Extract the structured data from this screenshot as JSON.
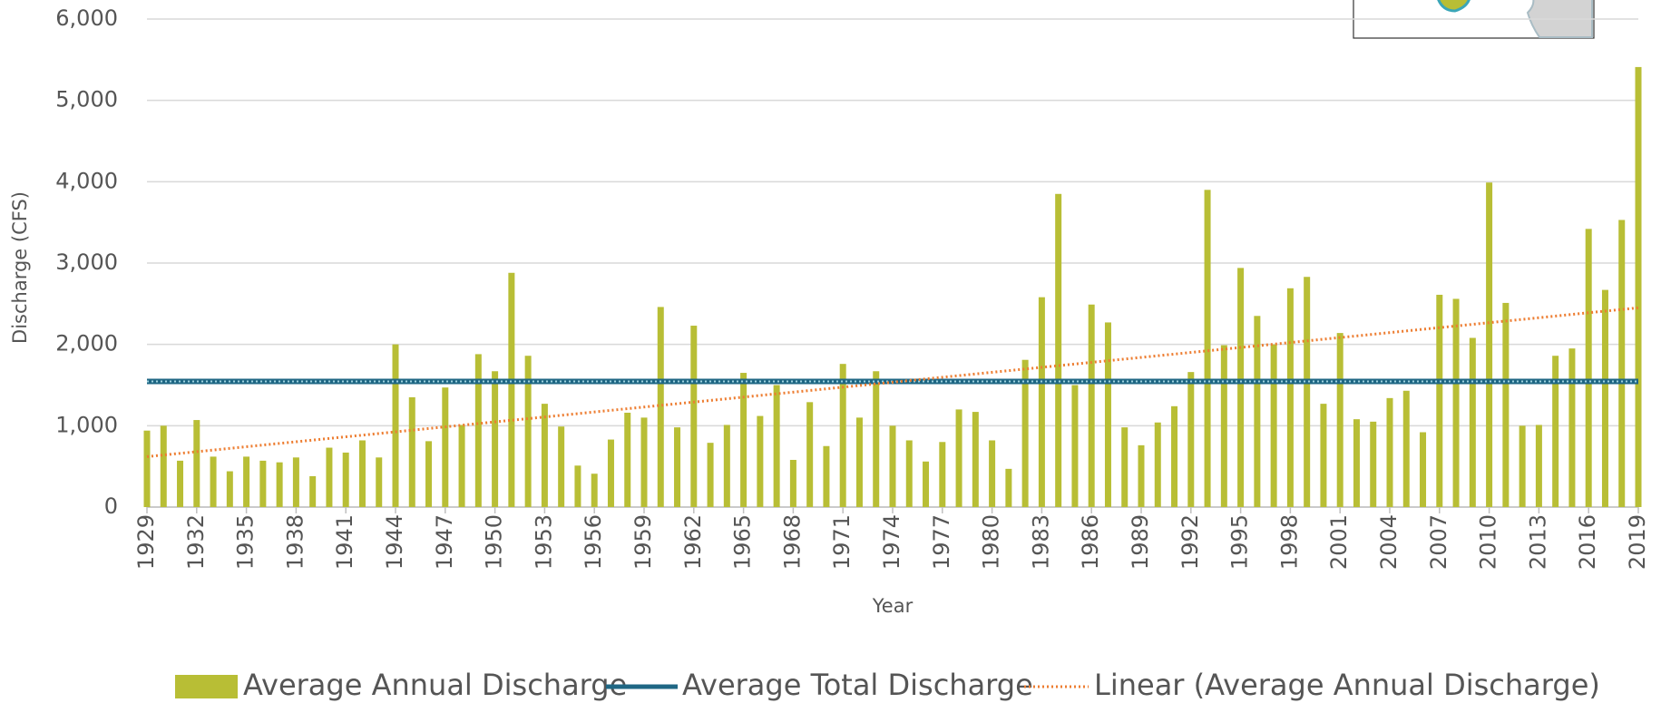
{
  "chart_data": {
    "type": "bar",
    "y_label": "Discharge (CFS)",
    "x_label": "Year",
    "x": [
      1929,
      1930,
      1931,
      1932,
      1933,
      1934,
      1935,
      1936,
      1937,
      1938,
      1939,
      1940,
      1941,
      1942,
      1943,
      1944,
      1945,
      1946,
      1947,
      1948,
      1949,
      1950,
      1951,
      1952,
      1953,
      1954,
      1955,
      1956,
      1957,
      1958,
      1959,
      1960,
      1961,
      1962,
      1963,
      1964,
      1965,
      1966,
      1967,
      1968,
      1969,
      1970,
      1971,
      1972,
      1973,
      1974,
      1975,
      1976,
      1977,
      1978,
      1979,
      1980,
      1981,
      1982,
      1983,
      1984,
      1985,
      1986,
      1987,
      1988,
      1989,
      1990,
      1991,
      1992,
      1993,
      1994,
      1995,
      1996,
      1997,
      1998,
      1999,
      2000,
      2001,
      2002,
      2003,
      2004,
      2005,
      2006,
      2007,
      2008,
      2009,
      2010,
      2011,
      2012,
      2013,
      2014,
      2015,
      2016,
      2017,
      2018,
      2019
    ],
    "series": [
      {
        "name": "Average Annual Discharge",
        "color": "#b8be35",
        "values": [
          940,
          1000,
          570,
          1070,
          620,
          440,
          620,
          570,
          550,
          610,
          380,
          730,
          670,
          820,
          610,
          2000,
          1350,
          810,
          1470,
          1010,
          1880,
          1670,
          2880,
          1860,
          1270,
          990,
          510,
          410,
          830,
          1160,
          1100,
          2460,
          980,
          2230,
          790,
          1010,
          1650,
          1120,
          1500,
          580,
          1290,
          750,
          1760,
          1100,
          1670,
          1000,
          820,
          560,
          800,
          1200,
          1170,
          820,
          470,
          1810,
          2580,
          3850,
          1500,
          2490,
          2270,
          980,
          760,
          1040,
          1240,
          1660,
          3900,
          1990,
          2940,
          2350,
          2000,
          2690,
          2830,
          1270,
          2140,
          1080,
          1050,
          1340,
          1430,
          920,
          2610,
          2560,
          2080,
          3990,
          2510,
          1000,
          1010,
          1860,
          1950,
          3420,
          2670,
          3530,
          5410
        ]
      }
    ],
    "reference_line": {
      "name": "Average Total Discharge",
      "color": "#1f6784",
      "value": 1545
    },
    "trendline": {
      "name": "Linear (Average Annual Discharge)",
      "color": "#ed7d31",
      "start": 620,
      "end": 2450
    },
    "xlim": [
      1929,
      2019
    ],
    "xticks": [
      1929,
      1932,
      1935,
      1938,
      1941,
      1944,
      1947,
      1950,
      1953,
      1956,
      1959,
      1962,
      1965,
      1968,
      1971,
      1974,
      1977,
      1980,
      1983,
      1986,
      1989,
      1992,
      1995,
      1998,
      2001,
      2004,
      2007,
      2010,
      2013,
      2016,
      2019
    ],
    "ylim": [
      0,
      6000
    ],
    "yticks": [
      0,
      {
        "value": 1000,
        "label": "1,000"
      },
      {
        "value": 2000,
        "label": "2,000"
      },
      {
        "value": 3000,
        "label": "3,000"
      },
      {
        "value": 4000,
        "label": "4,000"
      },
      {
        "value": 5000,
        "label": "5,000"
      },
      {
        "value": 6000,
        "label": "6,000"
      }
    ],
    "grid": true
  }
}
